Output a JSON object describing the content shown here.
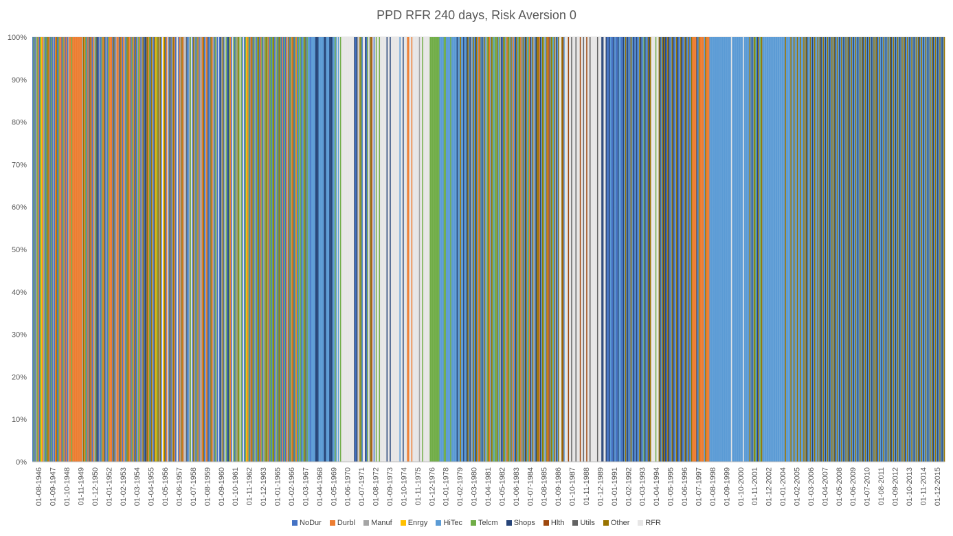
{
  "chart_data": {
    "type": "bar",
    "stacked": "percent",
    "title": "PPD RFR 240 days, Risk Aversion 0",
    "xlabel": "",
    "ylabel": "",
    "ylim": [
      0,
      1
    ],
    "y_ticks": [
      "0%",
      "10%",
      "20%",
      "30%",
      "40%",
      "50%",
      "60%",
      "70%",
      "80%",
      "90%",
      "100%"
    ],
    "x_tick_labels": [
      "01-08-1946",
      "01-09-1947",
      "01-10-1948",
      "01-11-1949",
      "01-12-1950",
      "01-01-1952",
      "01-02-1953",
      "01-03-1954",
      "01-04-1955",
      "01-05-1956",
      "01-06-1957",
      "01-07-1958",
      "01-08-1959",
      "01-09-1960",
      "01-10-1961",
      "01-11-1962",
      "01-12-1963",
      "01-01-1965",
      "01-02-1966",
      "01-03-1967",
      "01-04-1968",
      "01-05-1969",
      "01-06-1970",
      "01-07-1971",
      "01-08-1972",
      "01-09-1973",
      "01-10-1974",
      "01-11-1975",
      "01-12-1976",
      "01-01-1978",
      "01-02-1979",
      "01-03-1980",
      "01-04-1981",
      "01-05-1982",
      "01-06-1983",
      "01-07-1984",
      "01-08-1985",
      "01-09-1986",
      "01-10-1987",
      "01-11-1988",
      "01-12-1989",
      "01-01-1991",
      "01-02-1992",
      "01-03-1993",
      "01-04-1994",
      "01-05-1995",
      "01-06-1996",
      "01-07-1997",
      "01-08-1998",
      "01-09-1999",
      "01-10-2000",
      "01-11-2001",
      "01-12-2002",
      "01-01-2004",
      "01-02-2005",
      "01-03-2006",
      "01-04-2007",
      "01-05-2008",
      "01-06-2009",
      "01-07-2010",
      "01-08-2011",
      "01-09-2012",
      "01-10-2013",
      "01-11-2014",
      "01-12-2015"
    ],
    "series": [
      {
        "name": "NoDur",
        "color": "#4472C4"
      },
      {
        "name": "Durbl",
        "color": "#ED7D31"
      },
      {
        "name": "Manuf",
        "color": "#A5A5A5"
      },
      {
        "name": "Enrgy",
        "color": "#FFC000"
      },
      {
        "name": "HiTec",
        "color": "#5B9BD5"
      },
      {
        "name": "Telcm",
        "color": "#70AD47"
      },
      {
        "name": "Shops",
        "color": "#264478"
      },
      {
        "name": "Hlth",
        "color": "#9E480E"
      },
      {
        "name": "Utils",
        "color": "#636363"
      },
      {
        "name": "Other",
        "color": "#997300"
      },
      {
        "name": "RFR",
        "color": "#E7E6E6"
      }
    ],
    "bars_per_x_tick": 13,
    "holdings_note": "Each monthly bar is 100% allocated to a single series; indices into series list, one per tick segment",
    "holdings": [
      [
        0,
        5,
        0,
        2,
        5,
        1,
        0,
        5,
        3,
        1,
        2,
        5,
        0
      ],
      [
        5,
        9,
        1,
        0,
        5,
        0,
        2,
        0,
        1,
        9,
        0,
        5,
        1
      ],
      [
        1,
        0,
        5,
        1,
        0,
        1,
        0,
        2,
        1,
        1,
        5,
        1,
        1
      ],
      [
        1,
        1,
        1,
        1,
        1,
        1,
        1,
        2,
        9,
        1,
        5,
        0,
        1
      ],
      [
        0,
        9,
        1,
        0,
        1,
        2,
        5,
        8,
        6,
        0,
        2,
        0,
        5
      ],
      [
        1,
        9,
        0,
        2,
        0,
        5,
        1,
        1,
        1,
        0,
        9,
        0,
        2
      ],
      [
        1,
        1,
        0,
        9,
        1,
        0,
        1,
        2,
        0,
        5,
        9,
        1,
        1
      ],
      [
        0,
        5,
        1,
        0,
        9,
        0,
        2,
        5,
        1,
        0,
        2,
        9,
        0
      ],
      [
        6,
        8,
        9,
        1,
        5,
        0,
        9,
        2,
        0,
        9,
        3,
        5,
        9
      ],
      [
        2,
        9,
        0,
        10,
        3,
        9,
        0,
        1,
        10,
        0,
        9,
        0,
        2
      ],
      [
        9,
        1,
        0,
        2,
        10,
        0,
        1,
        2,
        9,
        1,
        2,
        10,
        8
      ],
      [
        0,
        4,
        2,
        5,
        10,
        0,
        9,
        2,
        0,
        5,
        1,
        0,
        2
      ],
      [
        2,
        1,
        9,
        0,
        2,
        1,
        8,
        0,
        4,
        9,
        1,
        2,
        0
      ],
      [
        5,
        2,
        0,
        10,
        0,
        6,
        2,
        9,
        0,
        10,
        5,
        0,
        6
      ],
      [
        5,
        1,
        0,
        10,
        5,
        0,
        5,
        2,
        9,
        5,
        10,
        5,
        0
      ],
      [
        10,
        0,
        5,
        3,
        1,
        5,
        0,
        1,
        9,
        0,
        5,
        2,
        0
      ],
      [
        5,
        9,
        0,
        1,
        5,
        0,
        2,
        5,
        9,
        5,
        1,
        0,
        5
      ],
      [
        0,
        5,
        9,
        0,
        2,
        5,
        0,
        9,
        5,
        0,
        1,
        0,
        5
      ],
      [
        0,
        1,
        2,
        9,
        0,
        5,
        1,
        9,
        0,
        5,
        1,
        0,
        5
      ],
      [
        4,
        5,
        0,
        4,
        5,
        9,
        0,
        5,
        4,
        4,
        0,
        4,
        4
      ],
      [
        4,
        4,
        6,
        6,
        6,
        4,
        4,
        4,
        4,
        4,
        6,
        6,
        4
      ],
      [
        4,
        4,
        6,
        6,
        6,
        4,
        4,
        5,
        4,
        10,
        4,
        10,
        5
      ],
      [
        10,
        10,
        10,
        10,
        10,
        10,
        10,
        10,
        10,
        10,
        10,
        10,
        6
      ],
      [
        0,
        6,
        2,
        10,
        9,
        5,
        0,
        10,
        10,
        6,
        0,
        5,
        10
      ],
      [
        2,
        9,
        7,
        10,
        0,
        10,
        5,
        10,
        10,
        5,
        10,
        10,
        10
      ],
      [
        10,
        10,
        10,
        6,
        10,
        10,
        6,
        10,
        10,
        10,
        10,
        10,
        10
      ],
      [
        10,
        10,
        4,
        10,
        10,
        6,
        10,
        10,
        10,
        1,
        1,
        10,
        10
      ],
      [
        1,
        10,
        10,
        10,
        10,
        10,
        10,
        2,
        10,
        10,
        5,
        10,
        10
      ],
      [
        10,
        10,
        10,
        10,
        5,
        5,
        5,
        5,
        5,
        5,
        5,
        5,
        5
      ],
      [
        4,
        4,
        4,
        4,
        5,
        5,
        4,
        4,
        4,
        4,
        5,
        4,
        4
      ],
      [
        4,
        4,
        4,
        6,
        4,
        4,
        9,
        4,
        4,
        6,
        4,
        4,
        6
      ],
      [
        9,
        4,
        6,
        2,
        4,
        9,
        4,
        6,
        9,
        4,
        1,
        9,
        4
      ],
      [
        6,
        4,
        9,
        4,
        2,
        5,
        9,
        1,
        4,
        9,
        5,
        4,
        5
      ],
      [
        5,
        9,
        4,
        5,
        2,
        6,
        0,
        9,
        5,
        4,
        1,
        9,
        5
      ],
      [
        4,
        9,
        4,
        1,
        4,
        6,
        9,
        4,
        5,
        9,
        1,
        4,
        9
      ],
      [
        4,
        6,
        9,
        4,
        5,
        1,
        6,
        4,
        9,
        2,
        4,
        6,
        9
      ],
      [
        9,
        1,
        6,
        4,
        9,
        5,
        2,
        4,
        9,
        1,
        7,
        4,
        9
      ],
      [
        5,
        4,
        9,
        2,
        6,
        4,
        9,
        10,
        10,
        9,
        7,
        4,
        10
      ],
      [
        10,
        10,
        7,
        10,
        10,
        8,
        10,
        10,
        10,
        8,
        10,
        10,
        10
      ],
      [
        7,
        10,
        10,
        8,
        10,
        10,
        7,
        10,
        10,
        8,
        10,
        10,
        10
      ],
      [
        10,
        10,
        10,
        8,
        10,
        10,
        10,
        6,
        6,
        10,
        10,
        6,
        0
      ],
      [
        0,
        6,
        4,
        0,
        0,
        6,
        4,
        0,
        0,
        6,
        4,
        4,
        0
      ],
      [
        0,
        6,
        4,
        9,
        0,
        6,
        4,
        0,
        9,
        4,
        6,
        0,
        4
      ],
      [
        6,
        0,
        4,
        9,
        6,
        0,
        4,
        5,
        6,
        4,
        0,
        9,
        6
      ],
      [
        9,
        10,
        10,
        10,
        10,
        5,
        10,
        10,
        9,
        6,
        4,
        9,
        6
      ],
      [
        9,
        6,
        0,
        9,
        6,
        0,
        4,
        9,
        6,
        0,
        4,
        9,
        6
      ],
      [
        0,
        4,
        9,
        6,
        0,
        4,
        9,
        6,
        4,
        9,
        0,
        4,
        9
      ],
      [
        1,
        1,
        1,
        1,
        6,
        4,
        9,
        1,
        1,
        1,
        1,
        4,
        9
      ],
      [
        1,
        1,
        1,
        4,
        4,
        4,
        4,
        4,
        4,
        4,
        4,
        4,
        4
      ],
      [
        4,
        4,
        4,
        4,
        4,
        4,
        4,
        4,
        4,
        4,
        10,
        4,
        4
      ],
      [
        4,
        4,
        4,
        4,
        4,
        4,
        4,
        4,
        10,
        4,
        4,
        4,
        4
      ],
      [
        4,
        9,
        4,
        6,
        4,
        9,
        5,
        4,
        6,
        9,
        4,
        5,
        9
      ],
      [
        4,
        4,
        4,
        4,
        4,
        4,
        4,
        4,
        4,
        4,
        4,
        4,
        4
      ],
      [
        4,
        4,
        4,
        4,
        4,
        4,
        4,
        4,
        9,
        4,
        4,
        4,
        4
      ],
      [
        9,
        4,
        4,
        9,
        4,
        4,
        9,
        4,
        4,
        9,
        4,
        4,
        9
      ],
      [
        4,
        9,
        6,
        4,
        4,
        9,
        4,
        6,
        4,
        9,
        4,
        4,
        9
      ],
      [
        4,
        9,
        6,
        4,
        9,
        4,
        6,
        4,
        9,
        4,
        6,
        4,
        9
      ],
      [
        4,
        9,
        6,
        4,
        9,
        4,
        6,
        4,
        9,
        4,
        6,
        4,
        9
      ],
      [
        4,
        9,
        6,
        4,
        9,
        4,
        6,
        4,
        9,
        4,
        6,
        4,
        9
      ],
      [
        4,
        9,
        6,
        4,
        9,
        4,
        6,
        4,
        9,
        4,
        6,
        4,
        9
      ],
      [
        4,
        9,
        6,
        4,
        9,
        4,
        6,
        4,
        9,
        4,
        6,
        4,
        9
      ],
      [
        4,
        9,
        6,
        4,
        9,
        4,
        6,
        4,
        9,
        4,
        6,
        4,
        9
      ],
      [
        4,
        9,
        6,
        4,
        9,
        4,
        6,
        4,
        9,
        4,
        6,
        4,
        9
      ],
      [
        4,
        9,
        6,
        4,
        9,
        4,
        6,
        4,
        9,
        4,
        6,
        4,
        9
      ],
      [
        4,
        9,
        6,
        4,
        9,
        4,
        6,
        4,
        9,
        4,
        6,
        4,
        9
      ]
    ],
    "grid": true,
    "legend_placement": "bottom"
  }
}
